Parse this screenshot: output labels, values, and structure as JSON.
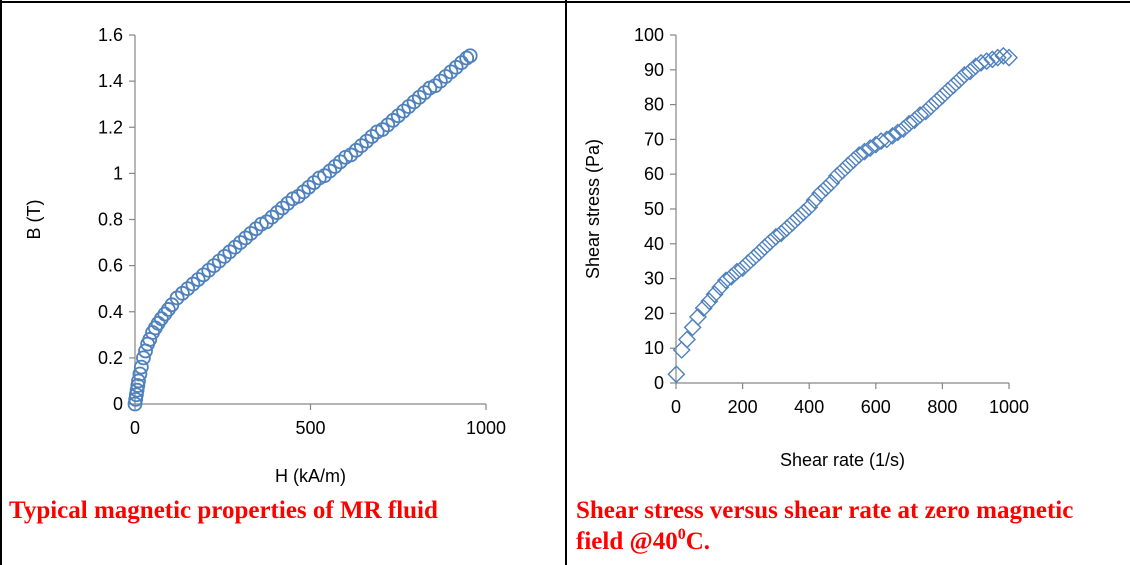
{
  "chart_data": [
    {
      "type": "scatter",
      "title": "",
      "xlabel": "H (kA/m)",
      "ylabel": "B (T)",
      "xlim": [
        0,
        1000
      ],
      "ylim": [
        0,
        1.6
      ],
      "xticks": [
        0,
        500,
        1000
      ],
      "yticks": [
        0,
        0.2,
        0.4,
        0.6,
        0.8,
        1,
        1.2,
        1.4,
        1.6
      ],
      "xtick_labels": [
        "0",
        "500",
        "1000"
      ],
      "ytick_labels": [
        "0",
        "0.2",
        "0.4",
        "0.6",
        "0.8",
        "1",
        "1.2",
        "1.4",
        "1.6"
      ],
      "grid": false,
      "marker": "circle-open",
      "color": "#4f81bd",
      "series": [
        {
          "x": [
            0,
            2,
            4,
            6,
            8,
            10,
            14,
            18,
            24,
            30,
            36,
            42,
            50,
            58,
            66,
            75,
            85,
            95,
            105,
            120,
            135,
            150,
            165,
            180,
            195,
            210,
            225,
            240,
            255,
            270,
            285,
            300,
            315,
            330,
            345,
            360,
            375,
            390,
            405,
            420,
            435,
            450,
            465,
            480,
            495,
            510,
            525,
            540,
            555,
            570,
            585,
            600,
            615,
            630,
            645,
            660,
            675,
            690,
            705,
            720,
            735,
            750,
            765,
            780,
            795,
            810,
            825,
            840,
            855,
            870,
            885,
            900,
            915,
            930,
            945,
            955
          ],
          "y": [
            0,
            0.02,
            0.04,
            0.06,
            0.08,
            0.1,
            0.13,
            0.16,
            0.2,
            0.23,
            0.26,
            0.28,
            0.31,
            0.33,
            0.35,
            0.37,
            0.39,
            0.41,
            0.43,
            0.46,
            0.48,
            0.5,
            0.52,
            0.54,
            0.56,
            0.58,
            0.6,
            0.62,
            0.64,
            0.66,
            0.68,
            0.7,
            0.72,
            0.74,
            0.76,
            0.78,
            0.79,
            0.81,
            0.83,
            0.85,
            0.87,
            0.89,
            0.9,
            0.92,
            0.94,
            0.96,
            0.98,
            0.99,
            1.01,
            1.03,
            1.05,
            1.07,
            1.08,
            1.1,
            1.12,
            1.14,
            1.16,
            1.18,
            1.19,
            1.21,
            1.23,
            1.25,
            1.27,
            1.29,
            1.31,
            1.33,
            1.35,
            1.37,
            1.38,
            1.4,
            1.42,
            1.44,
            1.46,
            1.48,
            1.5,
            1.51
          ]
        }
      ]
    },
    {
      "type": "scatter",
      "title": "",
      "xlabel": "Shear rate (1/s)",
      "ylabel": "Shear stress (Pa)",
      "xlim": [
        0,
        1000
      ],
      "ylim": [
        0,
        100
      ],
      "xticks": [
        0,
        200,
        400,
        600,
        800,
        1000
      ],
      "yticks": [
        0,
        10,
        20,
        30,
        40,
        50,
        60,
        70,
        80,
        90,
        100
      ],
      "xtick_labels": [
        "0",
        "200",
        "400",
        "600",
        "800",
        "1000"
      ],
      "ytick_labels": [
        "0",
        "10",
        "20",
        "30",
        "40",
        "50",
        "60",
        "70",
        "80",
        "90",
        "100"
      ],
      "grid": false,
      "marker": "diamond-open",
      "color": "#4f81bd",
      "series": [
        {
          "x": [
            1,
            17,
            33,
            50,
            66,
            83,
            100,
            116,
            133,
            150,
            166,
            183,
            200,
            216,
            233,
            250,
            266,
            283,
            300,
            316,
            333,
            350,
            366,
            383,
            400,
            416,
            433,
            450,
            466,
            483,
            500,
            516,
            533,
            550,
            566,
            583,
            600,
            616,
            633,
            650,
            666,
            683,
            700,
            716,
            733,
            750,
            766,
            783,
            800,
            816,
            833,
            850,
            866,
            883,
            900,
            916,
            933,
            950,
            966,
            983,
            1000
          ],
          "y": [
            2.5,
            9.5,
            12.5,
            16,
            19,
            21.5,
            23.5,
            25.5,
            27.5,
            29.5,
            30.5,
            32,
            33,
            34.5,
            36,
            37.5,
            39,
            40.5,
            42,
            43,
            44.5,
            46,
            47.5,
            49,
            50.5,
            52.5,
            54.5,
            56,
            57.5,
            59.5,
            61,
            62.5,
            64,
            65.5,
            66.5,
            67.5,
            68.5,
            69.5,
            70,
            71,
            72,
            73,
            74.5,
            75.5,
            77,
            78,
            79.5,
            81,
            82.5,
            84,
            85.5,
            87,
            88.5,
            89.5,
            91,
            92,
            92.5,
            93,
            93.5,
            94,
            93.5
          ]
        }
      ]
    }
  ],
  "captions": {
    "left": "Typical magnetic properties of MR fluid",
    "right_main": "Shear stress versus shear rate at zero magnetic field @40",
    "right_sup": "0",
    "right_end": "C."
  }
}
